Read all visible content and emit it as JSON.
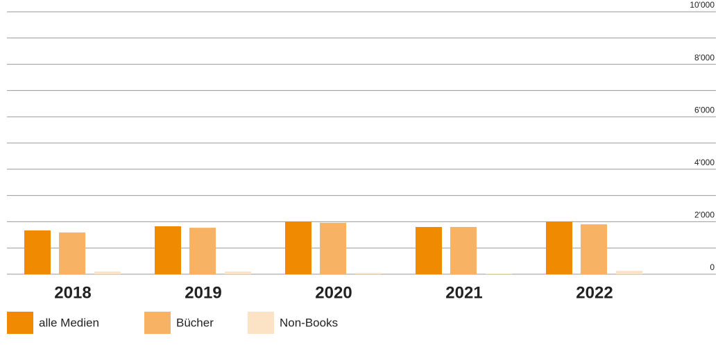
{
  "chart_data": {
    "type": "bar",
    "categories": [
      "2018",
      "2019",
      "2020",
      "2021",
      "2022"
    ],
    "series": [
      {
        "name": "alle Medien",
        "color": "#f08a00",
        "values": [
          1670,
          1825,
          2010,
          1800,
          2010
        ]
      },
      {
        "name": "Bücher",
        "color": "#f7b264",
        "values": [
          1590,
          1770,
          1960,
          1800,
          1900
        ]
      },
      {
        "name": "Non-Books",
        "color": "#fde3c6",
        "values": [
          100,
          100,
          50,
          30,
          130
        ]
      }
    ],
    "ylim": [
      0,
      10000
    ],
    "yticks": [
      0,
      {
        "value": 2000,
        "label": "2'000"
      },
      {
        "value": 4000,
        "label": "4'000"
      },
      {
        "value": 6000,
        "label": "6'000"
      },
      {
        "value": 8000,
        "label": "8'000"
      },
      {
        "value": 10000,
        "label": "10'000"
      }
    ],
    "minor_yticks": [
      1000,
      3000,
      5000,
      7000,
      9000
    ],
    "grid": true
  }
}
